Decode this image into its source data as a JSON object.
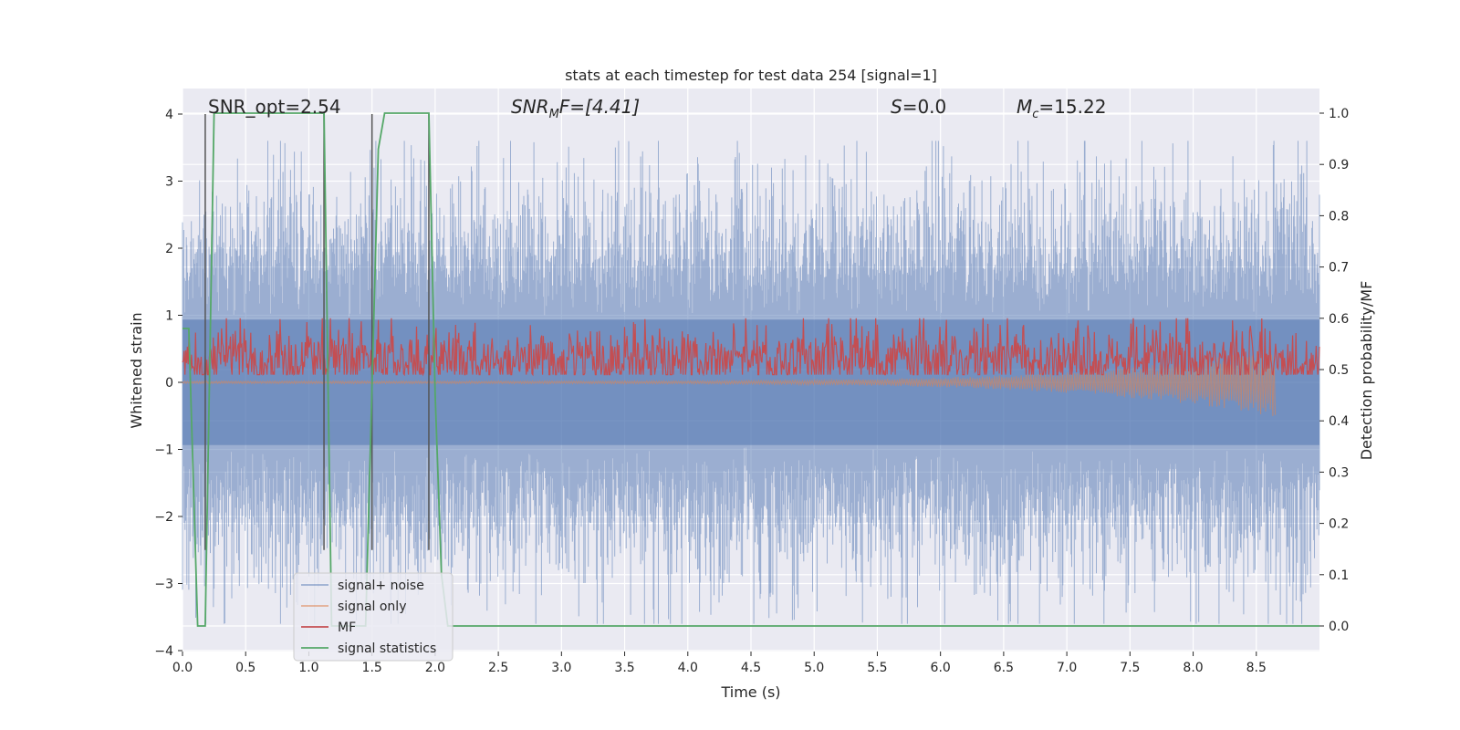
{
  "chart_data": {
    "type": "line",
    "title": "stats at each timestep for test data 254 [signal=1]",
    "xlabel": "Time (s)",
    "ylabel_left": "Whitened strain",
    "ylabel_right": "Detection probability/MF",
    "xlim": [
      0.0,
      9.0
    ],
    "ylim_left": [
      -4.0,
      4.0
    ],
    "ylim_right": [
      0.0,
      1.0
    ],
    "x_ticks": [
      "0.0",
      "0.5",
      "1.0",
      "1.5",
      "2.0",
      "2.5",
      "3.0",
      "3.5",
      "4.0",
      "4.5",
      "5.0",
      "5.5",
      "6.0",
      "6.5",
      "7.0",
      "7.5",
      "8.0",
      "8.5"
    ],
    "y_ticks_left": [
      "−4",
      "−3",
      "−2",
      "−1",
      "0",
      "1",
      "2",
      "3",
      "4"
    ],
    "y_ticks_right": [
      "0.0",
      "0.1",
      "0.2",
      "0.3",
      "0.4",
      "0.5",
      "0.6",
      "0.7",
      "0.8",
      "0.9",
      "1.0"
    ],
    "grid": true,
    "legend_position": "lower-left",
    "annotations": {
      "snr_opt": "SNR_opt=2.54",
      "snr_mf_label": "SNR",
      "snr_mf_sub": "M",
      "snr_mf_tail": "F=[4.41]",
      "s_label": "S",
      "s_tail": "=0.0",
      "mc_label": "M",
      "mc_sub": "c",
      "mc_tail": "=15.22"
    },
    "series": [
      {
        "name": "signal+ noise",
        "color": "#4c72b0",
        "opacity": 0.5,
        "envelope_abs": 1.7,
        "peak_abs": 3.6
      },
      {
        "name": "signal only",
        "color": "#dd8452",
        "opacity": 0.6,
        "final_dip_x": 8.65,
        "final_dip_y": -0.5
      },
      {
        "name": "MF",
        "color": "#c44e52",
        "range": [
          0.0,
          0.9
        ]
      },
      {
        "name": "signal statistics",
        "color": "#55a868",
        "x": [
          0.0,
          0.05,
          0.12,
          0.18,
          0.25,
          0.3,
          1.12,
          1.18,
          1.45,
          1.55,
          1.6,
          1.65,
          1.95,
          2.0,
          2.05,
          2.1,
          9.0
        ],
        "y": [
          0.58,
          0.58,
          0.0,
          0.0,
          1.0,
          1.0,
          1.0,
          0.0,
          0.0,
          0.93,
          1.0,
          1.0,
          1.0,
          0.45,
          0.1,
          0.0,
          0.0
        ]
      }
    ],
    "vertical_lines_x": [
      0.18,
      1.12,
      1.5,
      1.95
    ]
  }
}
